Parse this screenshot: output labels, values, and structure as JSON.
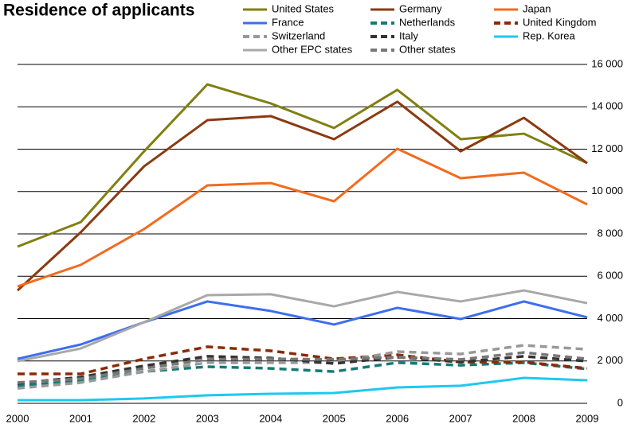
{
  "chart_data": {
    "type": "line",
    "title": "Residence of applicants",
    "categories": [
      "2000",
      "2001",
      "2002",
      "2003",
      "2004",
      "2005",
      "2006",
      "2007",
      "2008",
      "2009"
    ],
    "ylim": [
      0,
      16000
    ],
    "yticks": [
      0,
      {
        "value": 2000,
        "label": "2 000"
      },
      {
        "value": 4000,
        "label": "4 000"
      },
      {
        "value": 6000,
        "label": "6 000"
      },
      {
        "value": 8000,
        "label": "8 000"
      },
      {
        "value": 10000,
        "label": "10 000"
      },
      {
        "value": 12000,
        "label": "12 000"
      },
      {
        "value": 14000,
        "label": "14 000"
      },
      {
        "value": 16000,
        "label": "16 000"
      }
    ],
    "grid": true,
    "series": [
      {
        "name": "United States",
        "color": "#808012",
        "dashed": false,
        "values": [
          7400,
          8560,
          11900,
          15060,
          14160,
          13000,
          14800,
          12470,
          12730,
          11340
        ]
      },
      {
        "name": "Germany",
        "color": "#8b3a10",
        "dashed": false,
        "values": [
          5330,
          8080,
          11190,
          13370,
          13560,
          12470,
          14240,
          11900,
          13480,
          11340
        ]
      },
      {
        "name": "Japan",
        "color": "#f26b1d",
        "dashed": false,
        "values": [
          5520,
          6540,
          8230,
          10290,
          10400,
          9540,
          12020,
          10630,
          10890,
          9390
        ]
      },
      {
        "name": "France",
        "color": "#3d6ef0",
        "dashed": false,
        "values": [
          2100,
          2780,
          3830,
          4810,
          4360,
          3720,
          4510,
          3980,
          4810,
          4060
        ]
      },
      {
        "name": "Netherlands",
        "color": "#167a74",
        "dashed": true,
        "values": [
          830,
          1050,
          1500,
          1730,
          1650,
          1500,
          1920,
          1800,
          1920,
          1620
        ]
      },
      {
        "name": "United Kingdom",
        "color": "#8b2a08",
        "dashed": true,
        "values": [
          1390,
          1390,
          2100,
          2670,
          2480,
          2100,
          2290,
          1950,
          1950,
          1650
        ]
      },
      {
        "name": "Switzerland",
        "color": "#999999",
        "dashed": true,
        "values": [
          710,
          980,
          1500,
          1920,
          1920,
          1920,
          2440,
          2330,
          2740,
          2550
        ]
      },
      {
        "name": "Italy",
        "color": "#333333",
        "dashed": true,
        "values": [
          940,
          1240,
          1770,
          2220,
          2140,
          1880,
          2180,
          1950,
          2220,
          1990
        ]
      },
      {
        "name": "Rep. Korea",
        "color": "#1ec8f0",
        "dashed": false,
        "values": [
          150,
          150,
          230,
          380,
          450,
          490,
          750,
          830,
          1200,
          1090
        ]
      },
      {
        "name": "Other EPC states",
        "color": "#a8a8a8",
        "dashed": false,
        "values": [
          1990,
          2590,
          3830,
          5110,
          5150,
          4580,
          5260,
          4810,
          5330,
          4730
        ]
      },
      {
        "name": "Other states",
        "color": "#777777",
        "dashed": true,
        "values": [
          980,
          1160,
          1650,
          2070,
          2100,
          2070,
          2180,
          2070,
          2400,
          2100
        ]
      }
    ]
  }
}
